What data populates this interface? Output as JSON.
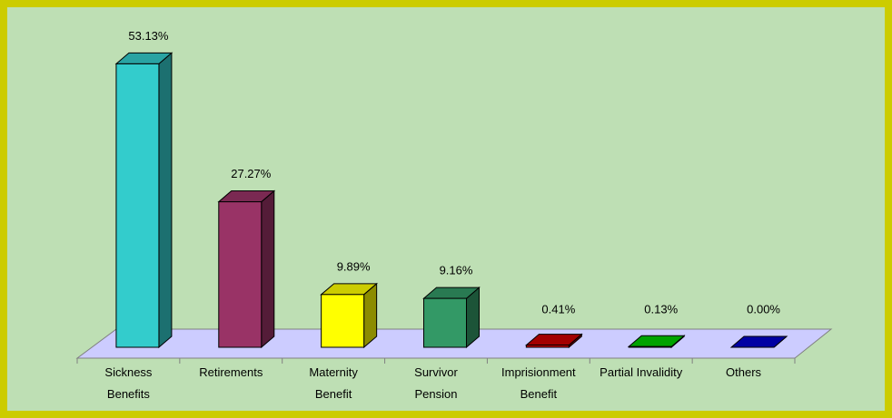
{
  "chart_data": {
    "type": "bar3d",
    "categories": [
      "Sickness Benefits",
      "Retirements",
      "Maternity Benefit",
      "Survivor Pension",
      "Imprisionment Benefit",
      "Partial Invalidity",
      "Others"
    ],
    "values": [
      53.13,
      27.27,
      9.89,
      9.16,
      0.41,
      0.13,
      0.0
    ],
    "value_labels": [
      "53.13%",
      "27.27%",
      "9.89%",
      "9.16%",
      "0.41%",
      "0.13%",
      "0.00%"
    ],
    "colors": [
      "#33cccc",
      "#993366",
      "#ffff00",
      "#339966",
      "#cc0000",
      "#00cc00",
      "#0000cc"
    ],
    "ylim": [
      0,
      60
    ]
  }
}
